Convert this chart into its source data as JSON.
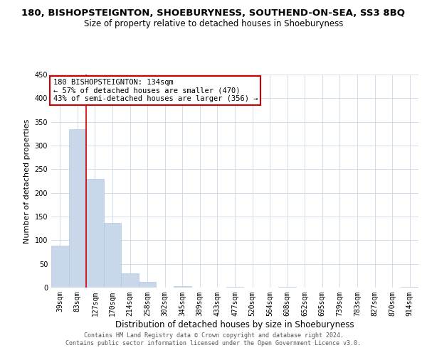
{
  "title": "180, BISHOPSTEIGNTON, SHOEBURYNESS, SOUTHEND-ON-SEA, SS3 8BQ",
  "subtitle": "Size of property relative to detached houses in Shoeburyness",
  "xlabel": "Distribution of detached houses by size in Shoeburyness",
  "ylabel": "Number of detached properties",
  "bar_color": "#c8d8ea",
  "bar_edge_color": "#b0c8e0",
  "vline_color": "#cc0000",
  "vline_x_index": 2,
  "categories": [
    "39sqm",
    "83sqm",
    "127sqm",
    "170sqm",
    "214sqm",
    "258sqm",
    "302sqm",
    "345sqm",
    "389sqm",
    "433sqm",
    "477sqm",
    "520sqm",
    "564sqm",
    "608sqm",
    "652sqm",
    "695sqm",
    "739sqm",
    "783sqm",
    "827sqm",
    "870sqm",
    "914sqm"
  ],
  "values": [
    88,
    335,
    230,
    137,
    30,
    12,
    0,
    3,
    0,
    0,
    2,
    0,
    0,
    1,
    0,
    0,
    0,
    0,
    0,
    0,
    2
  ],
  "ylim": [
    0,
    450
  ],
  "yticks": [
    0,
    50,
    100,
    150,
    200,
    250,
    300,
    350,
    400,
    450
  ],
  "annotation_title": "180 BISHOPSTEIGNTON: 134sqm",
  "annotation_line1": "← 57% of detached houses are smaller (470)",
  "annotation_line2": "43% of semi-detached houses are larger (356) →",
  "footer_line1": "Contains HM Land Registry data © Crown copyright and database right 2024.",
  "footer_line2": "Contains public sector information licensed under the Open Government Licence v3.0.",
  "background_color": "#ffffff",
  "grid_color": "#ccd8e8",
  "title_fontsize": 9.5,
  "subtitle_fontsize": 8.5,
  "ylabel_fontsize": 8.0,
  "xlabel_fontsize": 8.5,
  "tick_fontsize": 7.0,
  "footer_fontsize": 6.0
}
